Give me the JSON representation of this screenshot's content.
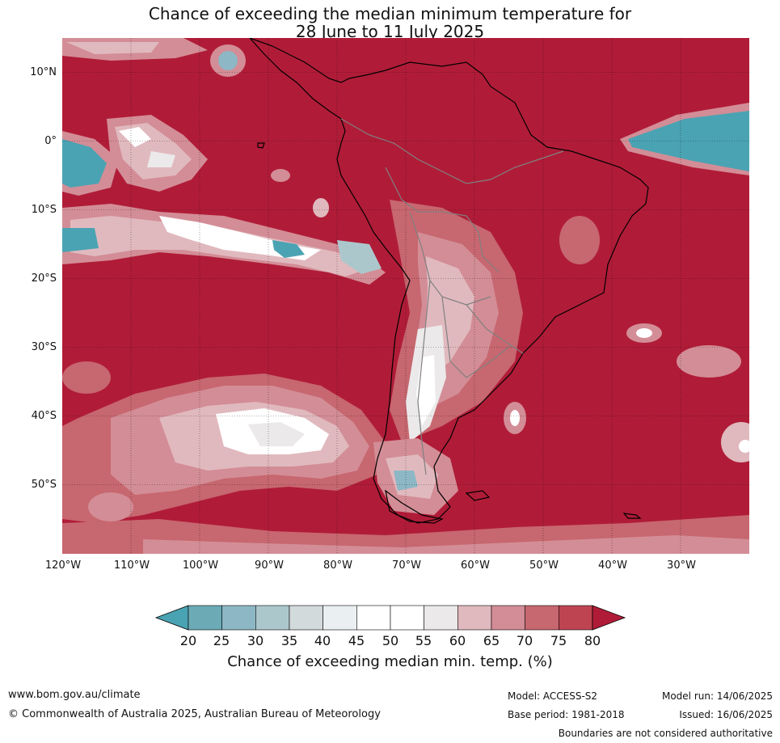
{
  "title": {
    "line1": "Chance of exceeding the median minimum temperature for",
    "line2": "28 June to 11 July 2025"
  },
  "map": {
    "region": "South America",
    "lat_range": [
      -60,
      15
    ],
    "lon_range": [
      -120,
      -20
    ],
    "lat_labels": [
      {
        "lat": 10,
        "text": "10°N"
      },
      {
        "lat": 0,
        "text": "0°"
      },
      {
        "lat": -10,
        "text": "10°S"
      },
      {
        "lat": -20,
        "text": "20°S"
      },
      {
        "lat": -30,
        "text": "30°S"
      },
      {
        "lat": -40,
        "text": "40°S"
      },
      {
        "lat": -50,
        "text": "50°S"
      }
    ],
    "lon_labels": [
      {
        "lon": -120,
        "text": "120°W"
      },
      {
        "lon": -110,
        "text": "110°W"
      },
      {
        "lon": -100,
        "text": "100°W"
      },
      {
        "lon": -90,
        "text": "90°W"
      },
      {
        "lon": -80,
        "text": "80°W"
      },
      {
        "lon": -70,
        "text": "70°W"
      },
      {
        "lon": -60,
        "text": "60°W"
      },
      {
        "lon": -50,
        "text": "50°W"
      },
      {
        "lon": -40,
        "text": "40°W"
      },
      {
        "lon": -30,
        "text": "30°W"
      }
    ],
    "gridlines": true,
    "dominant_color": "#b01c38"
  },
  "colorbar": {
    "label": "Chance of exceeding median min. temp. (%)",
    "ticks": [
      "20",
      "25",
      "30",
      "35",
      "40",
      "45",
      "50",
      "55",
      "60",
      "65",
      "70",
      "75",
      "80"
    ],
    "under_color": "#4aa3b3",
    "over_color": "#b01c38",
    "bins": [
      "#6caab6",
      "#8db7c5",
      "#acc7cc",
      "#d3dadb",
      "#eaf0f2",
      "#ffffff",
      "#ffffff",
      "#ebe9ea",
      "#e0b9be",
      "#d38d96",
      "#c7676f",
      "#bf4452"
    ]
  },
  "footer": {
    "website": "www.bom.gov.au/climate",
    "copyright": "© Commonwealth of Australia 2025, Australian Bureau of Meteorology",
    "model": "Model: ACCESS-S2",
    "model_run": "Model run: 14/06/2025",
    "base_period": "Base period: 1981-2018",
    "issued": "Issued: 16/06/2025",
    "disclaimer": "Boundaries are not considered authoritative"
  }
}
